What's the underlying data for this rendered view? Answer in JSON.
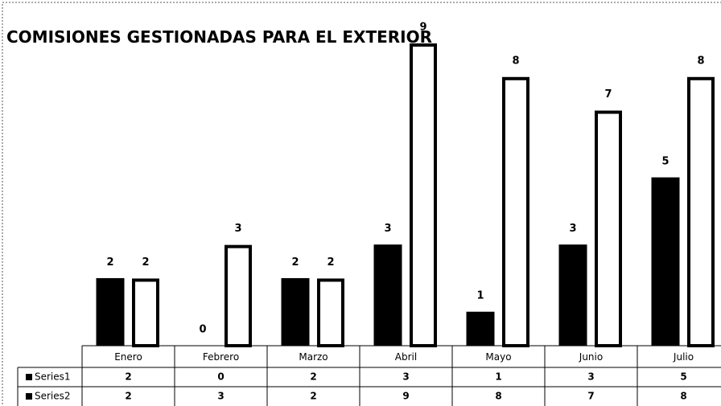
{
  "chart_data": {
    "type": "bar",
    "title": "COMISIONES GESTIONADAS PARA EL EXTERIOR",
    "categories": [
      "Enero",
      "Febrero",
      "Marzo",
      "Abril",
      "Mayo",
      "Junio",
      "Julio"
    ],
    "series": [
      {
        "name": "Series1",
        "color": "#000000",
        "values": [
          2,
          0,
          2,
          3,
          1,
          3,
          5
        ]
      },
      {
        "name": "Series2",
        "color": "#ffffff",
        "values": [
          2,
          3,
          2,
          9,
          8,
          7,
          8
        ]
      }
    ]
  }
}
